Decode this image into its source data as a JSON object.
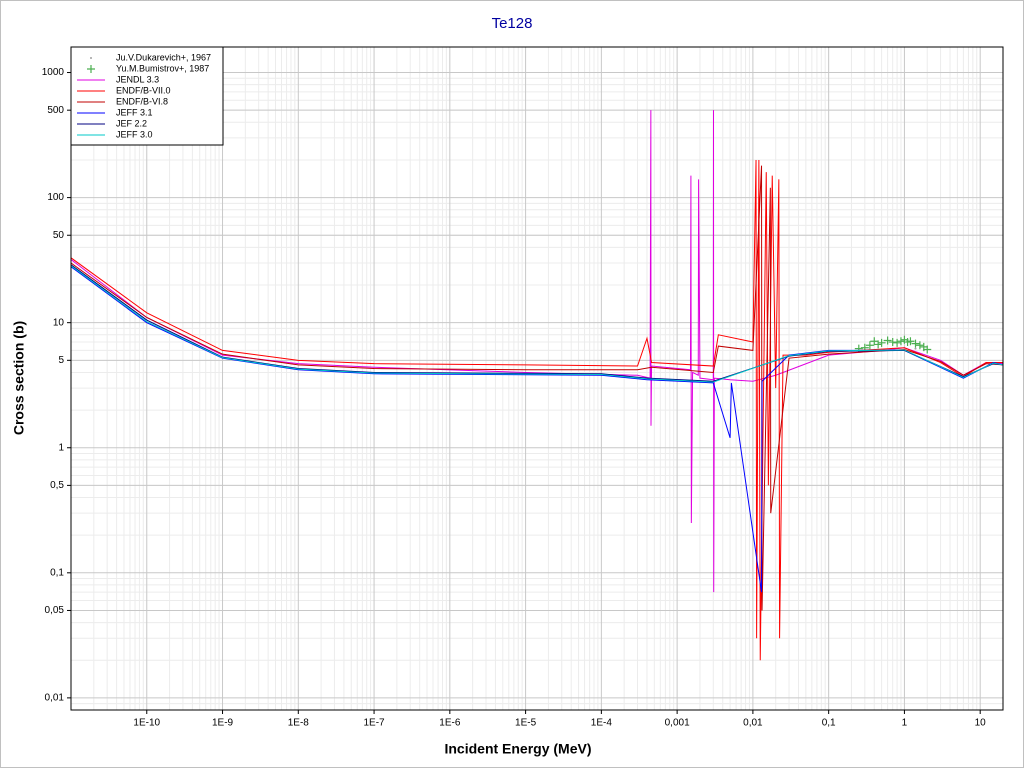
{
  "chart_data": {
    "type": "line",
    "title": "Te128",
    "x_label": "Incident Energy (MeV)",
    "y_label": "Cross section (b)",
    "xscale": "log",
    "yscale": "log",
    "grid": true,
    "legend": "upper left",
    "xlim": [
      1e-11,
      20
    ],
    "ylim": [
      0.008,
      1600
    ],
    "xticks": [
      {
        "value": 1e-10,
        "label": "1E-10"
      },
      {
        "value": 1e-09,
        "label": "1E-9"
      },
      {
        "value": 1e-08,
        "label": "1E-8"
      },
      {
        "value": 1e-07,
        "label": "1E-7"
      },
      {
        "value": 1e-06,
        "label": "1E-6"
      },
      {
        "value": 1e-05,
        "label": "1E-5"
      },
      {
        "value": 0.0001,
        "label": "1E-4"
      },
      {
        "value": 0.001,
        "label": "0,001"
      },
      {
        "value": 0.01,
        "label": "0,01"
      },
      {
        "value": 0.1,
        "label": "0,1"
      },
      1,
      10
    ],
    "yticks": [
      {
        "value": 0.01,
        "label": "0,01"
      },
      {
        "value": 0.05,
        "label": "0,05"
      },
      {
        "value": 0.1,
        "label": "0,1"
      },
      {
        "value": 0.5,
        "label": "0,5"
      },
      1,
      5,
      10,
      50,
      100,
      500,
      1000
    ],
    "series": [
      {
        "name": "Ju.V.Dukarevich+, 1967",
        "color": "#a0a0a0",
        "marker": "dot",
        "x": [
          1.4,
          1.8
        ],
        "values": [
          6.2,
          6.0
        ]
      },
      {
        "name": "Yu.M.Bumistrov+, 1987",
        "color": "#4caf50",
        "marker": "plus",
        "x": [
          0.25,
          0.3,
          0.35,
          0.4,
          0.45,
          0.5,
          0.6,
          0.7,
          0.8,
          0.9,
          1.0,
          1.1,
          1.2,
          1.4,
          1.6,
          1.8,
          2.0
        ],
        "values": [
          6.2,
          6.3,
          6.6,
          7.1,
          6.7,
          6.9,
          7.2,
          7.0,
          6.9,
          7.1,
          7.3,
          7.0,
          7.1,
          6.8,
          6.6,
          6.4,
          6.1
        ]
      },
      {
        "name": "JENDL 3.3",
        "color": "#e000e0",
        "x": [
          1e-11,
          1e-10,
          1e-09,
          1e-08,
          1e-07,
          1e-05,
          0.0003,
          0.00044,
          0.00045,
          0.000452,
          0.00046,
          0.0015,
          0.00152,
          0.00154,
          0.0016,
          0.0019,
          0.00192,
          0.002,
          0.003,
          0.00302,
          0.00304,
          0.0031,
          0.005,
          0.01,
          0.02,
          0.1,
          0.5,
          1,
          3,
          6,
          12,
          20
        ],
        "values": [
          32,
          11,
          5.5,
          4.7,
          4.4,
          4.0,
          3.8,
          3.6,
          500,
          1.5,
          4.5,
          4.2,
          150,
          0.25,
          4.0,
          3.8,
          140,
          3.6,
          3.5,
          500,
          0.07,
          3.6,
          3.5,
          3.4,
          3.8,
          5.5,
          6.0,
          6.3,
          5.0,
          3.8,
          4.8,
          4.7
        ]
      },
      {
        "name": "ENDF/B-VII.0",
        "color": "#ff0000",
        "x": [
          1e-11,
          1e-10,
          1e-09,
          1e-08,
          1e-07,
          1e-05,
          0.0003,
          0.0004,
          0.00046,
          0.003,
          0.0035,
          0.01,
          0.011,
          0.0112,
          0.012,
          0.0125,
          0.015,
          0.016,
          0.018,
          0.02,
          0.022,
          0.0225,
          0.025,
          0.05,
          0.1,
          1,
          3,
          6,
          12,
          20
        ],
        "values": [
          33,
          12,
          6.0,
          5.0,
          4.7,
          4.6,
          4.5,
          7.5,
          4.8,
          4.5,
          8.0,
          7.0,
          200,
          0.03,
          200,
          0.02,
          160,
          0.5,
          150,
          3.0,
          140,
          0.03,
          5.5,
          5.5,
          5.8,
          6.3,
          4.8,
          3.7,
          4.8,
          4.8
        ]
      },
      {
        "name": "ENDF/B-VI.8",
        "color": "#c00000",
        "x": [
          1e-11,
          1e-10,
          1e-09,
          1e-08,
          1e-07,
          1e-05,
          0.0003,
          0.00046,
          0.003,
          0.0035,
          0.01,
          0.013,
          0.0132,
          0.017,
          0.0172,
          0.03,
          0.1,
          1,
          3,
          6,
          12,
          20
        ],
        "values": [
          30,
          11,
          5.6,
          4.6,
          4.3,
          4.2,
          4.2,
          4.4,
          4.0,
          6.5,
          6.0,
          180,
          0.05,
          120,
          0.3,
          5.2,
          5.6,
          6.1,
          4.9,
          3.8,
          4.7,
          4.6
        ]
      },
      {
        "name": "JEFF 3.1",
        "color": "#0000ff",
        "x": [
          1e-11,
          1e-10,
          1e-09,
          1e-08,
          1e-07,
          0.0001,
          0.0004,
          0.003,
          0.005,
          0.0052,
          0.013,
          0.0132,
          0.03,
          0.1,
          1,
          6,
          15,
          20
        ],
        "values": [
          28,
          10,
          5.2,
          4.2,
          3.9,
          3.8,
          3.5,
          3.3,
          1.2,
          3.3,
          0.07,
          3.4,
          5.5,
          6.0,
          6.0,
          3.6,
          4.8,
          4.6
        ]
      },
      {
        "name": "JEF 2.2",
        "color": "#000080",
        "x": [
          1e-11,
          1e-10,
          1e-09,
          1e-08,
          1e-07,
          0.0001,
          0.0004,
          0.003,
          0.03,
          0.1,
          1,
          6,
          15,
          20
        ],
        "values": [
          29,
          10.5,
          5.3,
          4.3,
          4.0,
          3.9,
          3.6,
          3.4,
          5.4,
          5.9,
          6.0,
          3.7,
          4.7,
          4.6
        ]
      },
      {
        "name": "JEFF 3.0",
        "color": "#00c8c8",
        "x": [
          1e-11,
          1e-10,
          1e-09,
          1e-08,
          1e-07,
          0.0001,
          0.0004,
          0.003,
          0.03,
          0.1,
          1,
          6,
          15,
          20
        ],
        "values": [
          28.5,
          10.2,
          5.25,
          4.25,
          3.95,
          3.85,
          3.55,
          3.35,
          5.45,
          5.95,
          6.05,
          3.65,
          4.75,
          4.6
        ]
      }
    ]
  }
}
